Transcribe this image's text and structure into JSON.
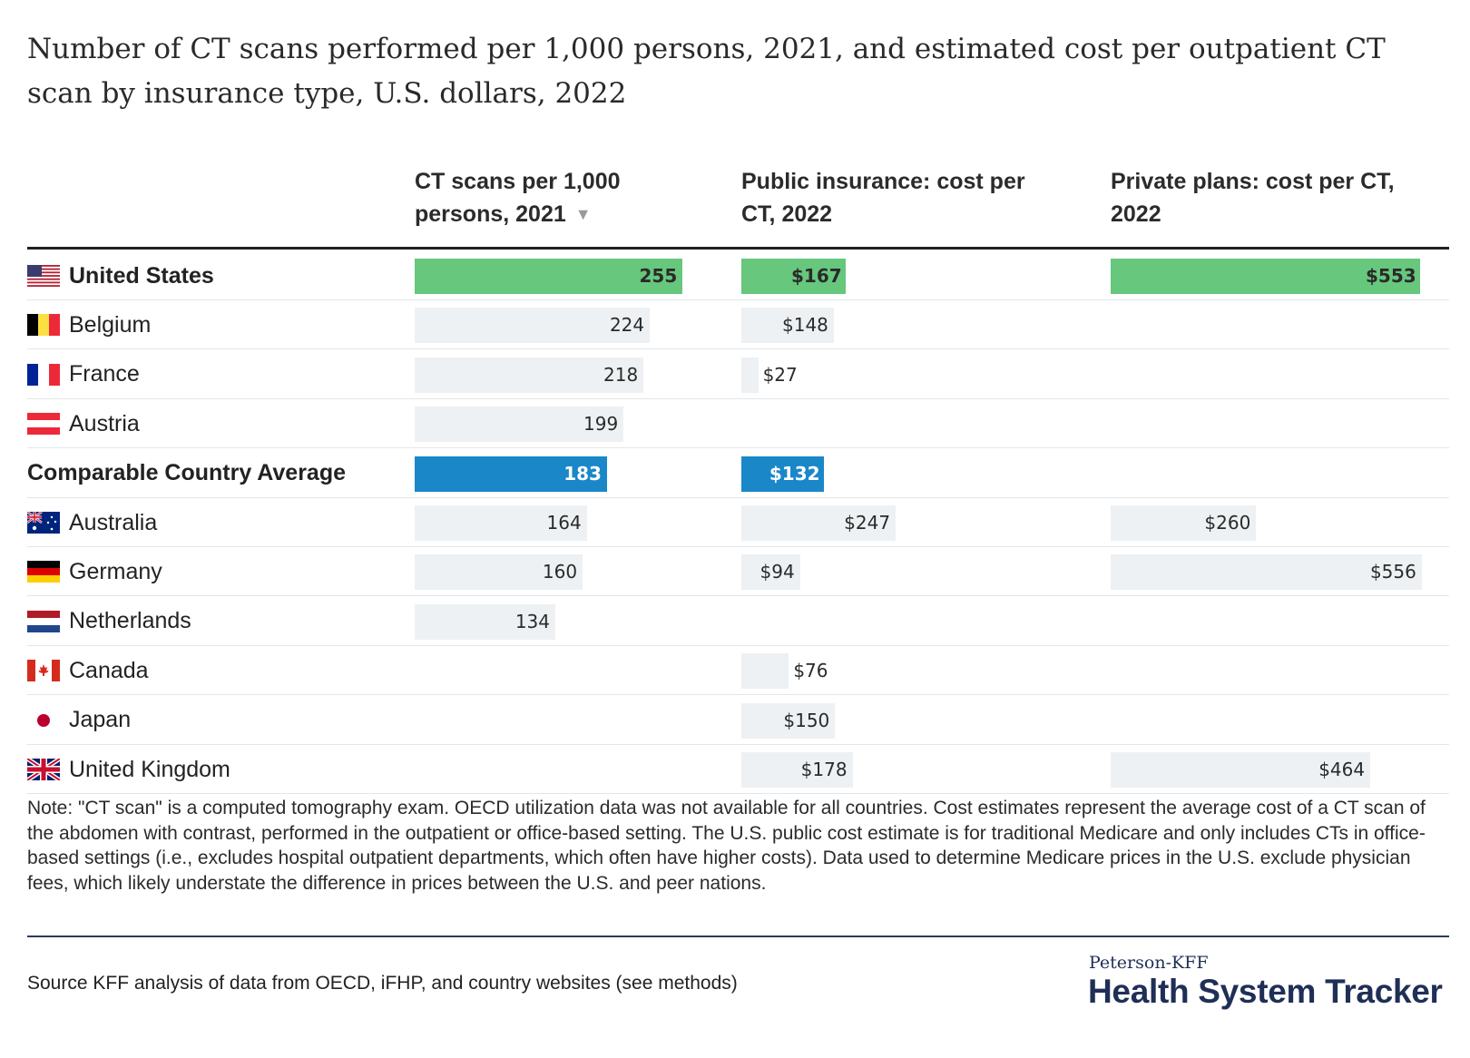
{
  "title": "Number of CT scans performed per 1,000 persons, 2021, and estimated cost per outpatient CT scan by insurance type, U.S. dollars, 2022",
  "columns": {
    "scans_line1": "CT scans per 1,000",
    "scans_line2": "persons, 2021",
    "sort_icon": "▼",
    "public_line1": "Public insurance: cost per",
    "public_line2": "CT, 2022",
    "private_line1": "Private plans: cost per CT,",
    "private_line2": "2022"
  },
  "colors": {
    "us": "#66c77d",
    "average": "#1a87c9",
    "default": "#edf1f3"
  },
  "chart_data": {
    "type": "table",
    "series": [
      {
        "name": "CT scans per 1,000 persons, 2021",
        "values": [
          255,
          224,
          218,
          199,
          183,
          164,
          160,
          134,
          null,
          null,
          null
        ]
      },
      {
        "name": "Public insurance: cost per CT, 2022",
        "values": [
          167,
          148,
          27,
          null,
          132,
          247,
          94,
          null,
          76,
          150,
          178
        ]
      },
      {
        "name": "Private plans: cost per CT, 2022",
        "values": [
          553,
          null,
          null,
          null,
          null,
          260,
          556,
          null,
          null,
          null,
          464
        ]
      }
    ],
    "categories": [
      "United States",
      "Belgium",
      "France",
      "Austria",
      "Comparable Country Average",
      "Australia",
      "Germany",
      "Netherlands",
      "Canada",
      "Japan",
      "United Kingdom"
    ],
    "rows": [
      {
        "country": "United States",
        "flag": "us-flag-icon",
        "kind": "us",
        "scans": 255,
        "scans_label": "255",
        "public": 167,
        "public_label": "$167",
        "private": 553,
        "private_label": "$553"
      },
      {
        "country": "Belgium",
        "flag": "belgium-flag-icon",
        "kind": "default",
        "scans": 224,
        "scans_label": "224",
        "public": 148,
        "public_label": "$148",
        "private": null,
        "private_label": ""
      },
      {
        "country": "France",
        "flag": "france-flag-icon",
        "kind": "default",
        "scans": 218,
        "scans_label": "218",
        "public": 27,
        "public_label": "$27",
        "private": null,
        "private_label": ""
      },
      {
        "country": "Austria",
        "flag": "austria-flag-icon",
        "kind": "default",
        "scans": 199,
        "scans_label": "199",
        "public": null,
        "public_label": "",
        "private": null,
        "private_label": ""
      },
      {
        "country": "Comparable Country Average",
        "flag": "",
        "kind": "avg",
        "scans": 183,
        "scans_label": "183",
        "public": 132,
        "public_label": "$132",
        "private": null,
        "private_label": ""
      },
      {
        "country": "Australia",
        "flag": "australia-flag-icon",
        "kind": "default",
        "scans": 164,
        "scans_label": "164",
        "public": 247,
        "public_label": "$247",
        "private": 260,
        "private_label": "$260"
      },
      {
        "country": "Germany",
        "flag": "germany-flag-icon",
        "kind": "default",
        "scans": 160,
        "scans_label": "160",
        "public": 94,
        "public_label": "$94",
        "private": 556,
        "private_label": "$556"
      },
      {
        "country": "Netherlands",
        "flag": "netherlands-flag-icon",
        "kind": "default",
        "scans": 134,
        "scans_label": "134",
        "public": null,
        "public_label": "",
        "private": null,
        "private_label": ""
      },
      {
        "country": "Canada",
        "flag": "canada-flag-icon",
        "kind": "default",
        "scans": null,
        "scans_label": "",
        "public": 76,
        "public_label": "$76",
        "private": null,
        "private_label": ""
      },
      {
        "country": "Japan",
        "flag": "japan-flag-icon",
        "kind": "default",
        "scans": null,
        "scans_label": "",
        "public": 150,
        "public_label": "$150",
        "private": null,
        "private_label": ""
      },
      {
        "country": "United Kingdom",
        "flag": "uk-flag-icon",
        "kind": "default",
        "scans": null,
        "scans_label": "",
        "public": 178,
        "public_label": "$178",
        "private": 464,
        "private_label": "$464"
      }
    ]
  },
  "note": "Note: \"CT scan\" is a computed tomography exam. OECD utilization data was not available for all countries. Cost estimates represent the average cost of a CT scan of the abdomen with contrast, performed in the outpatient or office-based setting. The U.S. public cost estimate is for traditional Medicare and only includes CTs in office-based settings (i.e., excludes hospital outpatient departments, which often have higher costs). Data used to determine Medicare prices in the U.S. exclude physician fees, which likely understate the difference in prices between the U.S. and peer nations.",
  "source": "Source KFF analysis of data from OECD, iFHP, and country websites (see methods)",
  "brand": {
    "small": "Peterson-KFF",
    "big": "Health System Tracker"
  }
}
